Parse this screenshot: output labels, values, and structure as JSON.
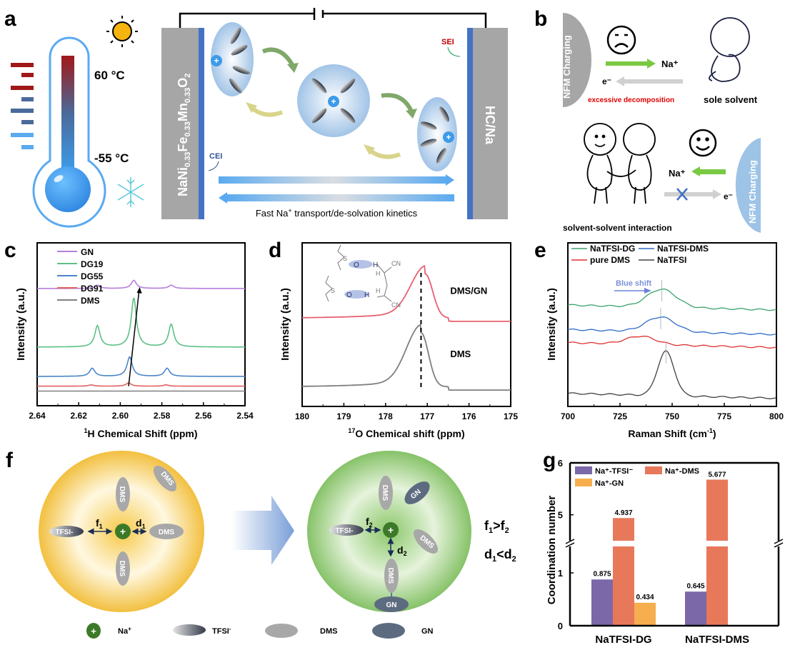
{
  "panels": {
    "a": {
      "label": "a",
      "temp_high": "60 °C",
      "temp_low": "-55 °C",
      "cathode_main": "NaNi",
      "cathode_sub1": "0.33",
      "cathode_fe": "Fe",
      "cathode_sub2": "0.33",
      "cathode_mn": "Mn",
      "cathode_sub3": "0.33",
      "cathode_o": "O",
      "cathode_sub4": "2",
      "anode": "HC/Na",
      "cei_label": "CEI",
      "sei_label": "SEI",
      "transport_pre": "Fast Na",
      "transport_sup": "+",
      "transport_post": " transport/de-solvation kinetics",
      "colors": {
        "electrode": "#a6a6a6",
        "interface": "#4472c4",
        "hot": "#a01818",
        "cold": "#3d9be9",
        "sei": "#c00000",
        "cei": "#2f5597"
      }
    },
    "b": {
      "label": "b",
      "nfm_top": "NFM Charging",
      "nfm_bottom": "NFM Charging",
      "na_top": "Na⁺",
      "e_top": "e⁻",
      "decomposition": "excessive decomposition",
      "sole_solvent": "sole solvent",
      "na_bottom": "Na⁺",
      "e_bottom": "e⁻",
      "interaction": "solvent-solvent interaction",
      "colors": {
        "nfm_top": "#a6a6a6",
        "nfm_bottom": "#9dc3e6",
        "na_arrow": "#7ac943",
        "e_arrow": "#d0d0d0",
        "decomp": "#e00000",
        "cross": "#4472c4"
      }
    },
    "f": {
      "label": "f",
      "left_labels": {
        "tfsi": "TFSI-",
        "f": "f",
        "f_sub": "1",
        "d": "d",
        "d_sub": "1",
        "dms": "DMS"
      },
      "right_labels": {
        "tfsi": "TFSI-",
        "f": "f",
        "f_sub": "2",
        "d": "d",
        "d_sub": "2",
        "dms": "DMS",
        "gn": "GN"
      },
      "relation1": {
        "a": "f",
        "a_sub": "1",
        "op": ">",
        "b": "f",
        "b_sub": "2"
      },
      "relation2": {
        "a": "d",
        "a_sub": "1",
        "op": "<",
        "b": "d",
        "b_sub": "2"
      },
      "legend": [
        {
          "name": "Na",
          "sup": "+"
        },
        {
          "name": "TFSI",
          "sup": "-"
        },
        {
          "name": "DMS",
          "sup": ""
        },
        {
          "name": "GN",
          "sup": ""
        }
      ],
      "colors": {
        "left_shell": "#f7c948",
        "right_shell": "#8cc76a",
        "na": "#3d7a28",
        "dms": "#a8a8a8",
        "gn": "#5d6b80"
      }
    }
  },
  "chart_data": [
    {
      "id": "c",
      "label": "c",
      "type": "line",
      "xlabel_sup": "1",
      "xlabel": "H Chemical Shift (ppm)",
      "ylabel": "Intensity (a.u.)",
      "xlim": [
        2.64,
        2.54
      ],
      "xticks": [
        "2.64",
        "2.62",
        "2.60",
        "2.58",
        "2.56",
        "2.54"
      ],
      "legend_position": "top-left",
      "series": [
        {
          "name": "GN",
          "color": "#b57edc",
          "offset": 0.72,
          "peaks": [
            [
              2.611,
              0.02
            ],
            [
              2.5935,
              0.05
            ],
            [
              2.5755,
              0.02
            ]
          ]
        },
        {
          "name": "DG19",
          "color": "#5dbf86",
          "offset": 0.36,
          "peaks": [
            [
              2.611,
              0.13
            ],
            [
              2.5935,
              0.3
            ],
            [
              2.5755,
              0.14
            ]
          ]
        },
        {
          "name": "DG55",
          "color": "#4a86c8",
          "offset": 0.18,
          "peaks": [
            [
              2.6135,
              0.05
            ],
            [
              2.5955,
              0.12
            ],
            [
              2.5775,
              0.05
            ]
          ]
        },
        {
          "name": "DG91",
          "color": "#e06060",
          "offset": 0.12,
          "peaks": [
            [
              2.614,
              0.008
            ],
            [
              2.596,
              0.02
            ],
            [
              2.578,
              0.008
            ]
          ]
        },
        {
          "name": "DMS",
          "color": "#808080",
          "offset": 0.09,
          "peaks": []
        }
      ],
      "arrow": {
        "from": [
          2.596,
          0.12
        ],
        "to": [
          2.591,
          0.72
        ]
      }
    },
    {
      "id": "d",
      "label": "d",
      "type": "line",
      "xlabel_sup": "17",
      "xlabel": "O Chemical shift (ppm)",
      "ylabel": "Intensity (a.u.)",
      "xlim": [
        180,
        175
      ],
      "xticks": [
        "180",
        "179",
        "178",
        "177",
        "176",
        "175"
      ],
      "dashed_line_x": 177.15,
      "series": [
        {
          "name": "DMS/GN",
          "color": "#e86070",
          "baseline": 0.54,
          "peak_x": 177.05,
          "peak_h": 0.27
        },
        {
          "name": "DMS",
          "color": "#7f7f7f",
          "baseline": 0.12,
          "peak_x": 177.15,
          "peak_h": 0.33
        }
      ],
      "molecule_labels": [
        "S",
        "O",
        "H",
        "CN",
        "H",
        "H",
        "S",
        "O",
        "H",
        "CN"
      ]
    },
    {
      "id": "e",
      "label": "e",
      "type": "line",
      "xlabel": "Raman Shift (cm",
      "xlabel_sup": "-1",
      "xlabel_end": ")",
      "ylabel": "Intensity (a.u.)",
      "xlim": [
        700,
        800
      ],
      "xticks": [
        "700",
        "725",
        "750",
        "775",
        "800"
      ],
      "annotation": "Blue shift",
      "legend_position": "top",
      "series": [
        {
          "name": "NaTFSI-DG",
          "color": "#3aa36b",
          "baseline": 0.62,
          "peak_x": 745,
          "peak_h": 0.11
        },
        {
          "name": "NaTFSI-DMS",
          "color": "#2e6bc4",
          "baseline": 0.47,
          "peak_x": 744.5,
          "peak_h": 0.09
        },
        {
          "name": "pure DMS",
          "color": "#e03030",
          "baseline": 0.39,
          "peak_x": 735,
          "peak_h": 0.05
        },
        {
          "name": "NaTFSI",
          "color": "#404040",
          "baseline": 0.08,
          "peak_x": 747,
          "peak_h": 0.27
        }
      ]
    },
    {
      "id": "g",
      "label": "g",
      "type": "bar",
      "ylabel": "Coordination number",
      "categories": [
        "NaTFSI-DG",
        "NaTFSI-DMS"
      ],
      "yticks": [
        "0",
        "1",
        "5",
        "6"
      ],
      "axis_break": [
        1.5,
        4.5
      ],
      "series": [
        {
          "name": "Na⁺-TFSI⁻",
          "color": "#7b68a8",
          "values": [
            0.875,
            0.645
          ],
          "labels": [
            "0.875",
            "0.645"
          ]
        },
        {
          "name": "Na⁺-DMS",
          "color": "#e8785a",
          "values": [
            4.937,
            5.677
          ],
          "labels": [
            "4.937",
            "5.677"
          ]
        },
        {
          "name": "Na⁺-GN",
          "color": "#f6ae4f",
          "values": [
            0.434,
            null
          ],
          "labels": [
            "0.434",
            ""
          ]
        }
      ],
      "legend_position": "top-left"
    }
  ]
}
